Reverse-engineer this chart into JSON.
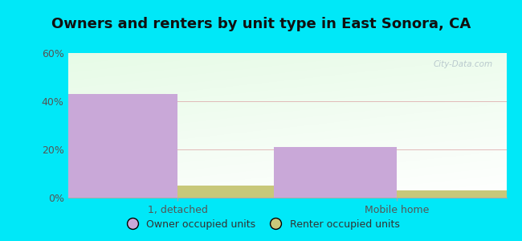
{
  "title": "Owners and renters by unit type in East Sonora, CA",
  "categories": [
    "1, detached",
    "Mobile home"
  ],
  "owner_values": [
    43,
    21
  ],
  "renter_values": [
    5,
    3
  ],
  "owner_color": "#c9a8d8",
  "renter_color": "#c8c87a",
  "ylim": [
    0,
    60
  ],
  "yticks": [
    0,
    20,
    40,
    60
  ],
  "yticklabels": [
    "0%",
    "20%",
    "40%",
    "60%"
  ],
  "bar_width": 0.28,
  "group_positions": [
    0.25,
    0.75
  ],
  "bg_outer": "#00e8f8",
  "title_fontsize": 13,
  "tick_fontsize": 9,
  "legend_fontsize": 9,
  "watermark": "City-Data.com"
}
